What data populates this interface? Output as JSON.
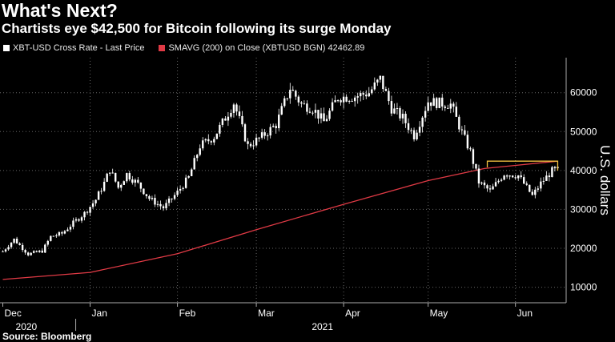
{
  "title": "What's Next?",
  "subtitle": "Chartists eye $42,500 for Bitcoin following its surge Monday",
  "source": "Source: Bloomberg",
  "legend": {
    "price_label": "XBT-USD Cross Rate - Last Price",
    "sma_label": "SMAVG (200)  on Close (XBTUSD BGN) 42462.89",
    "price_color": "#ffffff",
    "sma_color": "#e03a45"
  },
  "chart_data": {
    "type": "line",
    "title": "What's Next?",
    "subtitle": "Chartists eye $42,500 for Bitcoin following its surge Monday",
    "ylabel": "U.S. dollars",
    "ylim": [
      6000,
      69000
    ],
    "yticks": [
      10000,
      20000,
      30000,
      40000,
      50000,
      60000
    ],
    "ytick_labels": [
      "10000",
      "20000",
      "30000",
      "40000",
      "50000",
      "60000"
    ],
    "x_tick_labels": [
      "Dec",
      "Jan",
      "Feb",
      "Mar",
      "Apr",
      "May",
      "Jun"
    ],
    "year_labels": [
      "2020",
      "2021"
    ],
    "grid": true,
    "legend_placement": "top-left",
    "series": [
      {
        "name": "XBT-USD Cross Rate - Last Price",
        "x": [
          "2020-12-01",
          "2020-12-05",
          "2020-12-10",
          "2020-12-15",
          "2020-12-18",
          "2020-12-22",
          "2020-12-26",
          "2020-12-30",
          "2021-01-03",
          "2021-01-06",
          "2021-01-08",
          "2021-01-11",
          "2021-01-14",
          "2021-01-18",
          "2021-01-22",
          "2021-01-27",
          "2021-02-01",
          "2021-02-05",
          "2021-02-09",
          "2021-02-14",
          "2021-02-17",
          "2021-02-21",
          "2021-02-26",
          "2021-03-03",
          "2021-03-08",
          "2021-03-13",
          "2021-03-17",
          "2021-03-21",
          "2021-03-25",
          "2021-03-30",
          "2021-04-05",
          "2021-04-10",
          "2021-04-14",
          "2021-04-18",
          "2021-04-22",
          "2021-04-26",
          "2021-05-01",
          "2021-05-05",
          "2021-05-09",
          "2021-05-13",
          "2021-05-16",
          "2021-05-19",
          "2021-05-23",
          "2021-05-28",
          "2021-06-02",
          "2021-06-07",
          "2021-06-10",
          "2021-06-14",
          "2021-06-16"
        ],
        "y": [
          19200,
          22300,
          18500,
          19300,
          23000,
          23800,
          26500,
          29000,
          32500,
          36800,
          40300,
          35600,
          39100,
          36500,
          32800,
          30400,
          34400,
          38200,
          46300,
          48700,
          52300,
          57400,
          46300,
          48700,
          51800,
          61200,
          57000,
          56000,
          52500,
          58800,
          59000,
          60000,
          63500,
          56000,
          53500,
          49000,
          57800,
          57300,
          57000,
          49700,
          44800,
          37000,
          34700,
          39200,
          38700,
          33500,
          36700,
          39900,
          40100
        ]
      },
      {
        "name": "SMAVG (200)  on Close (XBTUSD BGN)",
        "x": [
          "2020-12-01",
          "2021-01-01",
          "2021-02-01",
          "2021-03-01",
          "2021-04-01",
          "2021-05-01",
          "2021-05-21",
          "2021-06-16"
        ],
        "y": [
          12000,
          13800,
          18600,
          24800,
          31300,
          37400,
          40500,
          42400
        ]
      }
    ],
    "annotations": [
      {
        "type": "box",
        "label": "",
        "x": [
          "2021-05-22",
          "2021-06-16"
        ],
        "y": [
          40800,
          42400
        ],
        "color": "#f0c040"
      }
    ]
  }
}
